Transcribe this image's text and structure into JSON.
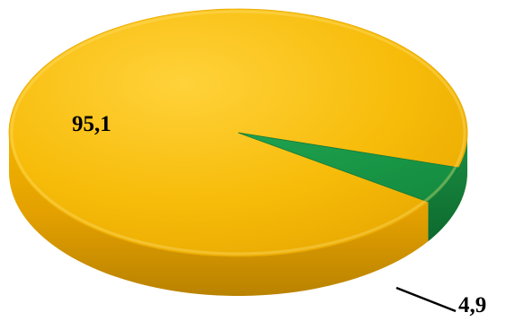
{
  "chart_data": {
    "type": "pie",
    "style": "3d",
    "slices": [
      {
        "label": "95,1",
        "value": 95.1,
        "color": "#F5B800"
      },
      {
        "label": "4,9",
        "value": 4.9,
        "color": "#1E9A4C"
      }
    ],
    "legend": "none"
  }
}
